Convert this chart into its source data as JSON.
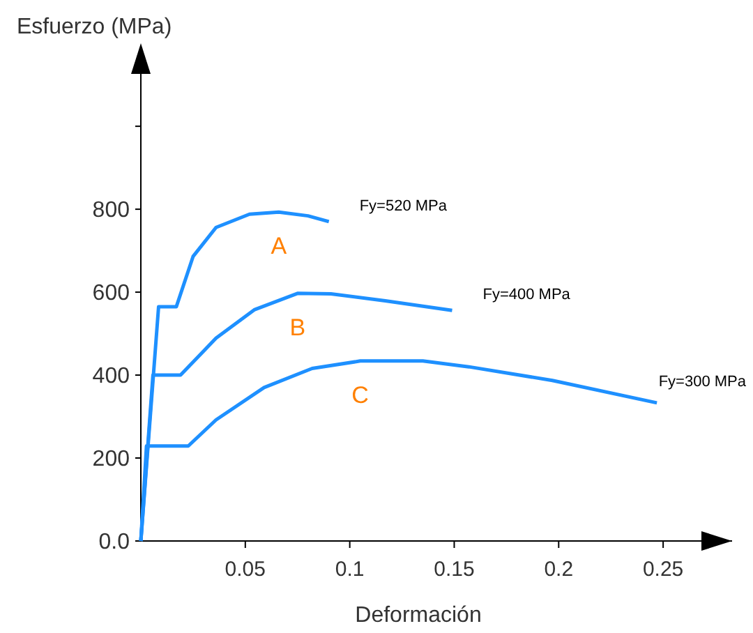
{
  "chart_data": {
    "type": "line",
    "xlabel": "Deformación",
    "ylabel": "Esfuerzo (MPa)",
    "xlim": [
      0,
      0.283
    ],
    "ylim": [
      0,
      1170
    ],
    "xticks": [
      0.05,
      0.1,
      {
        "value": 0.15,
        "label": "0.15"
      },
      0.2,
      0.25
    ],
    "yticks": [
      {
        "value": 0,
        "label": "0.0"
      },
      200,
      400,
      600,
      800,
      {
        "value": 1000,
        "label": null
      }
    ],
    "grid": false,
    "marker": "none",
    "line_style": "solid",
    "series": [
      {
        "name": "A",
        "color": "#1e90ff",
        "x": [
          0,
          0.0085,
          0.017,
          0.025,
          0.036,
          0.052,
          0.066,
          0.08,
          0.09
        ],
        "values": [
          0,
          565,
          565,
          686,
          756,
          788,
          793,
          784,
          770
        ]
      },
      {
        "name": "B",
        "color": "#1e90ff",
        "x": [
          0,
          0.0058,
          0.019,
          0.036,
          0.0545,
          0.075,
          0.091,
          0.117,
          0.149
        ],
        "values": [
          0,
          400,
          400,
          489,
          558,
          597,
          596,
          579,
          556
        ]
      },
      {
        "name": "C",
        "color": "#1e90ff",
        "x": [
          0,
          0.0027,
          0.0227,
          0.036,
          0.059,
          0.082,
          0.105,
          0.135,
          0.157,
          0.197,
          0.247
        ],
        "values": [
          0,
          229,
          229,
          292,
          370,
          416,
          434,
          434,
          420,
          387,
          333
        ]
      }
    ],
    "annotations": [
      "Fy=520  MPa",
      "Fy=400  MPa",
      "Fy=300  MPa"
    ]
  }
}
